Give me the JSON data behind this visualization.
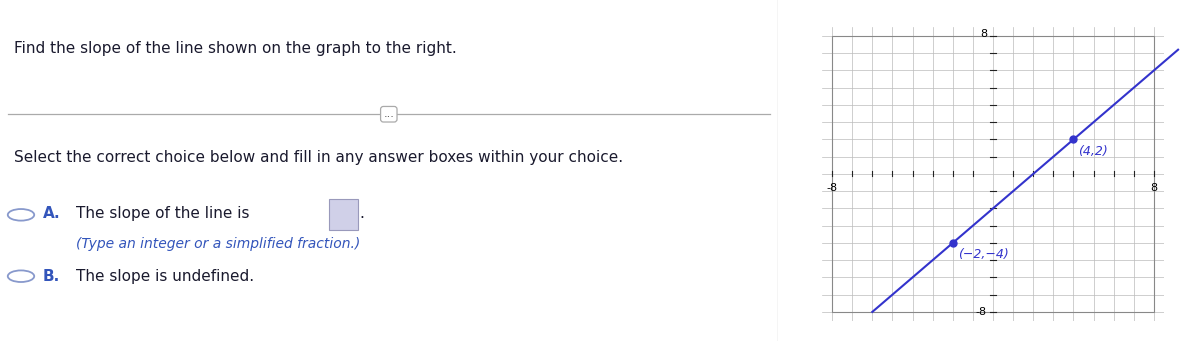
{
  "title_text": "Find the slope of the line shown on the graph to the right.",
  "separator_text": "...",
  "instruction_text": "Select the correct choice below and fill in any answer boxes within your choice.",
  "option_a_label": "A.",
  "option_a_text": "The slope of the line is",
  "option_a_subtext": "(Type an integer or a simplified fraction.)",
  "option_b_label": "B.",
  "option_b_text": "The slope is undefined.",
  "graph_xlim": [
    -8,
    8
  ],
  "graph_ylim": [
    -8,
    8
  ],
  "point1": [
    -2,
    -4
  ],
  "point2": [
    4,
    2
  ],
  "point1_label": "(−2,−4)",
  "point2_label": "(4,2)",
  "line_color": "#3333CC",
  "point_color": "#3333CC",
  "axis_color": "#222222",
  "grid_color": "#BBBBBB",
  "text_color_dark": "#1a1a2e",
  "text_color_blue": "#3355BB",
  "bg_color": "#FFFFFF",
  "divider_color": "#AAAAAA",
  "circle_color": "#8899CC",
  "box_color": "#D0D0E8",
  "top_bar_color": "#5599DD",
  "panel_divider_color": "#CCCCCC"
}
